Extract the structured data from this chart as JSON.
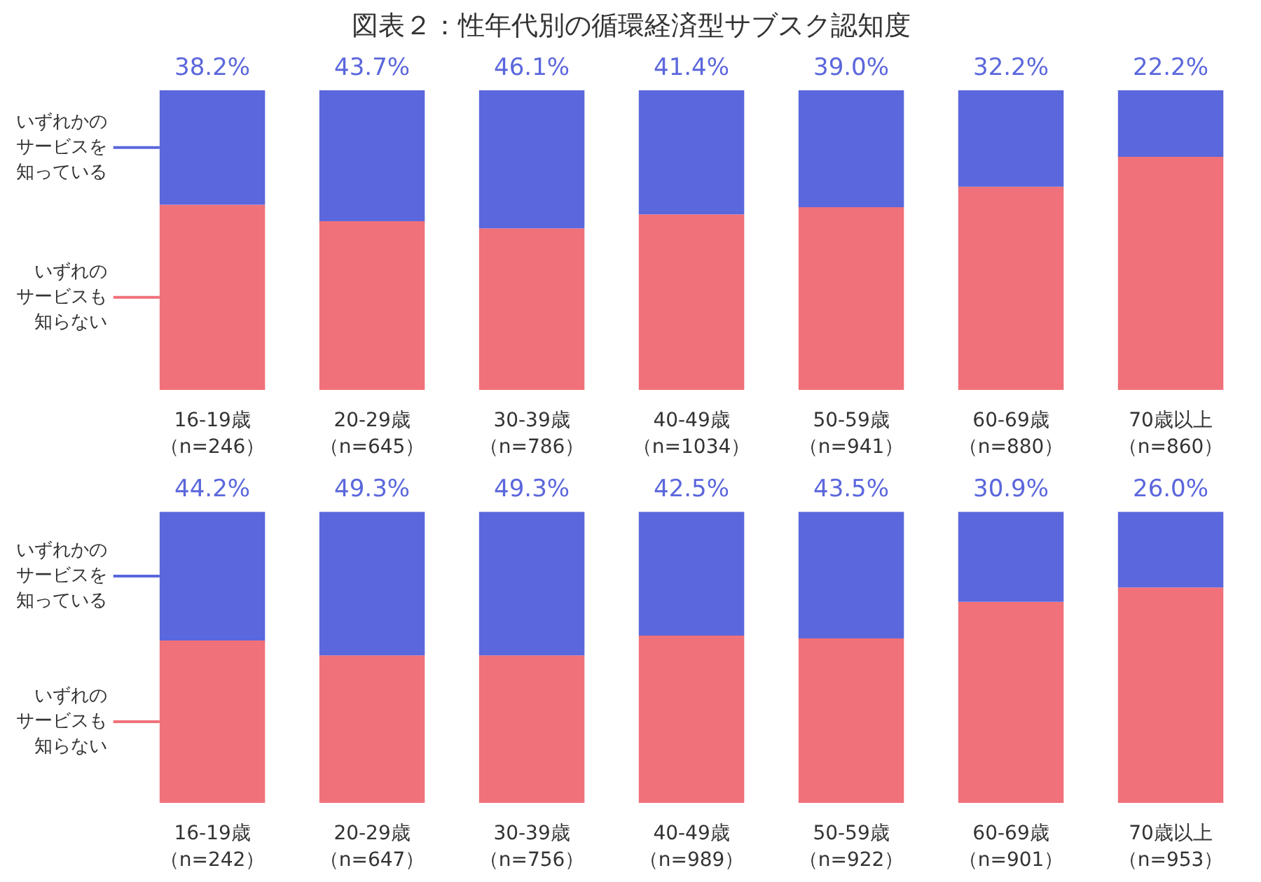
{
  "chart_data": [
    {
      "type": "bar",
      "title": "図表２：性年代別の循環経済型サブスク認知度",
      "stacked": true,
      "tick_labels": "x",
      "legend": "left",
      "categories": [
        "16-19歳（n=246）",
        "20-29歳（n=645）",
        "30-39歳（n=786）",
        "40-49歳（n=1034）",
        "50-59歳（n=941）",
        "60-69歳（n=880）",
        "70歳以上（n=860）"
      ],
      "series": [
        {
          "name": "いずれのサービスも知らない",
          "color": "#f0717a",
          "values": [
            61.8,
            56.3,
            53.9,
            58.6,
            61.0,
            67.8,
            77.8
          ]
        },
        {
          "name": "いずれかのサービスを知っている",
          "color": "#5b67dc",
          "values": [
            38.2,
            43.7,
            46.1,
            41.4,
            39.0,
            32.2,
            22.2
          ],
          "value_labels": [
            "38.2%",
            "43.7%",
            "46.1%",
            "41.4%",
            "39.0%",
            "32.2%",
            "22.2%"
          ]
        }
      ]
    },
    {
      "type": "bar",
      "stacked": true,
      "tick_labels": "x",
      "legend": "left",
      "categories": [
        "16-19歳（n=242）",
        "20-29歳（n=647）",
        "30-39歳（n=756）",
        "40-49歳（n=989）",
        "50-59歳（n=922）",
        "60-69歳（n=901）",
        "70歳以上（n=953）"
      ],
      "series": [
        {
          "name": "いずれのサービスも知らない",
          "color": "#f0717a",
          "values": [
            55.8,
            50.7,
            50.7,
            57.5,
            56.5,
            69.1,
            74.0
          ]
        },
        {
          "name": "いずれかのサービスを知っている",
          "color": "#5b67dc",
          "values": [
            44.2,
            49.3,
            49.3,
            42.5,
            43.5,
            30.9,
            26.0
          ],
          "value_labels": [
            "44.2%",
            "49.3%",
            "49.3%",
            "42.5%",
            "43.5%",
            "30.9%",
            "26.0%"
          ]
        }
      ]
    }
  ]
}
